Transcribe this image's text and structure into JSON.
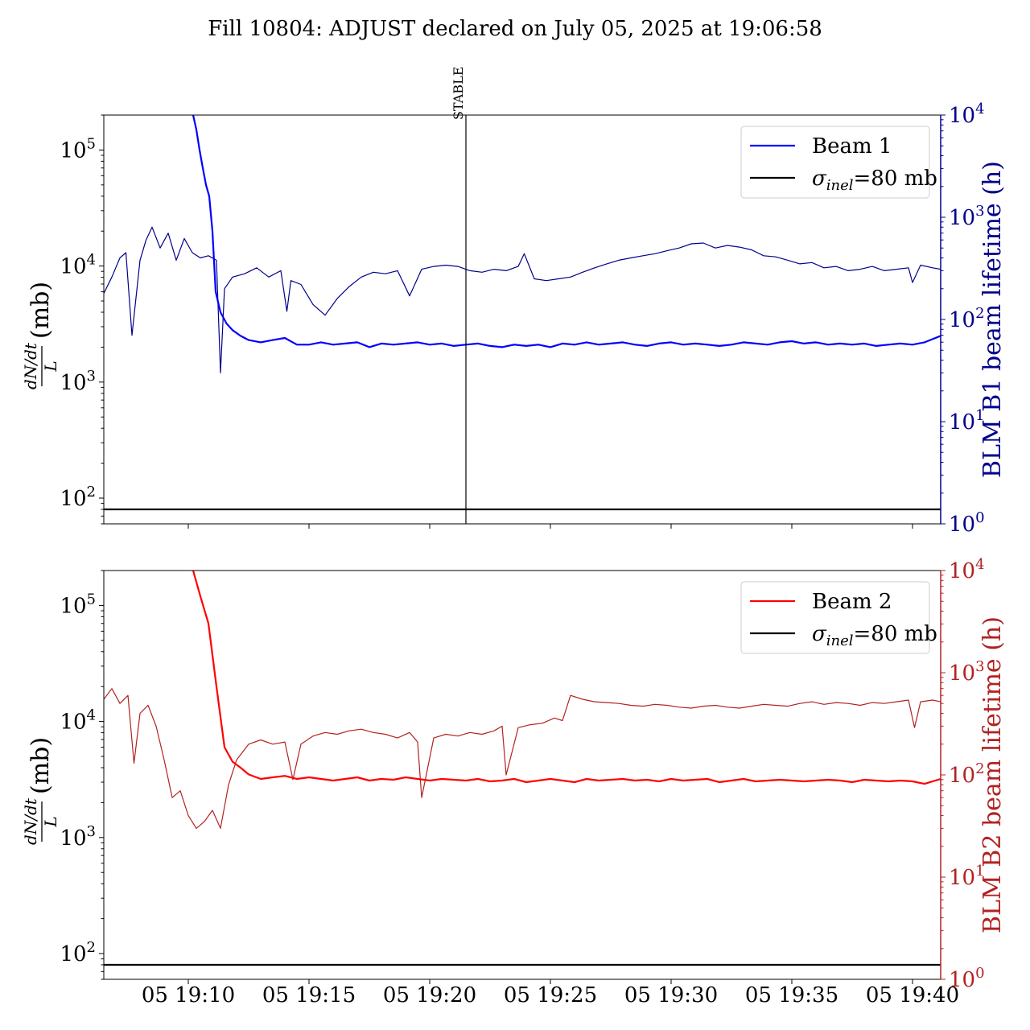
{
  "figure": {
    "title": "Fill 10804: ADJUST declared on July 05, 2025 at 19:06:58"
  },
  "chart_data": [
    {
      "type": "line",
      "panel": "top",
      "x_axis": {
        "kind": "time",
        "range": [
          "2025-07-05 19:06:30",
          "2025-07-05 19:41:10"
        ],
        "tick_labels": [
          "05 19:10",
          "05 19:15",
          "05 19:20",
          "05 19:25",
          "05 19:30",
          "05 19:35",
          "05 19:40"
        ],
        "tick_labels_visible": false
      },
      "left_axis": {
        "label": "dN/dt / L (mb)",
        "label_parts": {
          "numerator": "dN/dt",
          "denominator": "L",
          "unit": "(mb)"
        },
        "scale": "log",
        "range": [
          60,
          200000
        ],
        "tick_labels": [
          "10^2",
          "10^3",
          "10^4",
          "10^5"
        ],
        "tick_values": [
          100,
          1000,
          10000,
          100000
        ]
      },
      "right_axis": {
        "label": "BLM B1 beam lifetime (h)",
        "color": "#00008b",
        "scale": "log",
        "range": [
          1,
          10000
        ],
        "tick_labels": [
          "10^0",
          "10^1",
          "10^2",
          "10^3",
          "10^4"
        ],
        "tick_values": [
          1,
          10,
          100,
          1000,
          10000
        ]
      },
      "vline": {
        "time": "2025-07-05 19:21:30",
        "label": "STABLE"
      },
      "legend": {
        "position": "upper right",
        "entries": [
          {
            "label": "Beam 1",
            "color": "#0000ff"
          },
          {
            "label": "σinel=80 mb",
            "label_parts": {
              "symbol": "σ",
              "sub": "inel",
              "rest": "=80 mb"
            },
            "color": "#000000"
          }
        ]
      },
      "series": [
        {
          "name": "Beam 1",
          "axis": "left",
          "color": "#0000ff",
          "x": [
            "19:10:12",
            "19:10:20",
            "19:10:28",
            "19:10:36",
            "19:10:44",
            "19:10:52",
            "19:11:00",
            "19:11:08",
            "19:11:20",
            "19:11:35",
            "19:11:50",
            "19:12:10",
            "19:12:30",
            "19:13:00",
            "19:13:30",
            "19:14:00",
            "19:14:30",
            "19:15:00",
            "19:15:30",
            "19:16:00",
            "19:16:30",
            "19:17:00",
            "19:17:30",
            "19:18:00",
            "19:18:30",
            "19:19:00",
            "19:19:30",
            "19:20:00",
            "19:20:30",
            "19:21:00",
            "19:21:30",
            "19:22:00",
            "19:22:30",
            "19:23:00",
            "19:23:30",
            "19:24:00",
            "19:24:30",
            "19:25:00",
            "19:25:30",
            "19:26:00",
            "19:26:30",
            "19:27:00",
            "19:27:30",
            "19:28:00",
            "19:28:30",
            "19:29:00",
            "19:29:30",
            "19:30:00",
            "19:30:30",
            "19:31:00",
            "19:31:30",
            "19:32:00",
            "19:32:30",
            "19:33:00",
            "19:33:30",
            "19:34:00",
            "19:34:30",
            "19:35:00",
            "19:35:30",
            "19:36:00",
            "19:36:30",
            "19:37:00",
            "19:37:30",
            "19:38:00",
            "19:38:30",
            "19:39:00",
            "19:39:30",
            "19:40:00",
            "19:40:30",
            "19:41:10"
          ],
          "values": [
            200000,
            150000,
            100000,
            70000,
            50000,
            40000,
            20000,
            6000,
            4000,
            3200,
            2800,
            2500,
            2300,
            2200,
            2300,
            2400,
            2100,
            2100,
            2200,
            2100,
            2150,
            2200,
            2000,
            2150,
            2100,
            2150,
            2200,
            2100,
            2150,
            2050,
            2100,
            2150,
            2050,
            2000,
            2100,
            2050,
            2100,
            2000,
            2150,
            2100,
            2200,
            2100,
            2150,
            2200,
            2100,
            2050,
            2150,
            2200,
            2100,
            2150,
            2100,
            2050,
            2100,
            2200,
            2150,
            2100,
            2200,
            2250,
            2150,
            2200,
            2100,
            2150,
            2100,
            2150,
            2050,
            2100,
            2150,
            2100,
            2200,
            2500
          ]
        },
        {
          "name": "σinel=80 mb",
          "axis": "left",
          "color": "#000000",
          "x": [
            "19:06:30",
            "19:41:10"
          ],
          "values": [
            80,
            80
          ]
        },
        {
          "name": "BLM B1 beam lifetime",
          "axis": "right",
          "color": "#00008b",
          "x": [
            "19:06:30",
            "19:06:50",
            "19:07:10",
            "19:07:25",
            "19:07:40",
            "19:08:00",
            "19:08:15",
            "19:08:30",
            "19:08:50",
            "19:09:10",
            "19:09:30",
            "19:09:50",
            "19:10:10",
            "19:10:30",
            "19:10:50",
            "19:11:10",
            "19:11:20",
            "19:11:30",
            "19:11:50",
            "19:12:20",
            "19:12:50",
            "19:13:20",
            "19:13:50",
            "19:14:05",
            "19:14:15",
            "19:14:40",
            "19:15:10",
            "19:15:40",
            "19:16:10",
            "19:16:40",
            "19:17:10",
            "19:17:40",
            "19:18:10",
            "19:18:40",
            "19:19:10",
            "19:19:40",
            "19:20:10",
            "19:20:40",
            "19:21:10",
            "19:21:40",
            "19:22:10",
            "19:22:40",
            "19:23:10",
            "19:23:40",
            "19:23:55",
            "19:24:20",
            "19:24:50",
            "19:25:20",
            "19:25:50",
            "19:26:20",
            "19:26:50",
            "19:27:20",
            "19:27:50",
            "19:28:20",
            "19:28:50",
            "19:29:20",
            "19:29:50",
            "19:30:20",
            "19:30:50",
            "19:31:20",
            "19:31:50",
            "19:32:20",
            "19:32:50",
            "19:33:20",
            "19:33:50",
            "19:34:20",
            "19:34:50",
            "19:35:20",
            "19:35:50",
            "19:36:20",
            "19:36:50",
            "19:37:20",
            "19:37:50",
            "19:38:20",
            "19:38:50",
            "19:39:20",
            "19:39:50",
            "19:40:00",
            "19:40:20",
            "19:40:50",
            "19:41:10"
          ],
          "values": [
            180,
            260,
            400,
            450,
            70,
            380,
            600,
            800,
            500,
            700,
            380,
            620,
            450,
            400,
            420,
            380,
            30,
            200,
            260,
            280,
            320,
            260,
            300,
            120,
            240,
            220,
            140,
            110,
            160,
            210,
            260,
            290,
            280,
            300,
            170,
            310,
            330,
            340,
            330,
            300,
            290,
            310,
            300,
            330,
            440,
            250,
            240,
            250,
            260,
            290,
            320,
            350,
            380,
            400,
            420,
            440,
            470,
            500,
            550,
            560,
            500,
            530,
            510,
            480,
            420,
            410,
            380,
            350,
            360,
            320,
            330,
            300,
            310,
            330,
            300,
            310,
            320,
            230,
            340,
            320,
            310
          ]
        }
      ]
    },
    {
      "type": "line",
      "panel": "bottom",
      "x_axis": {
        "kind": "time",
        "range": [
          "2025-07-05 19:06:30",
          "2025-07-05 19:41:10"
        ],
        "tick_labels": [
          "05 19:10",
          "05 19:15",
          "05 19:20",
          "05 19:25",
          "05 19:30",
          "05 19:35",
          "05 19:40"
        ],
        "tick_labels_visible": true
      },
      "left_axis": {
        "label": "dN/dt / L (mb)",
        "label_parts": {
          "numerator": "dN/dt",
          "denominator": "L",
          "unit": "(mb)"
        },
        "scale": "log",
        "range": [
          60,
          200000
        ],
        "tick_labels": [
          "10^2",
          "10^3",
          "10^4",
          "10^5"
        ],
        "tick_values": [
          100,
          1000,
          10000,
          100000
        ]
      },
      "right_axis": {
        "label": "BLM B2 beam lifetime (h)",
        "color": "#b22222",
        "scale": "log",
        "range": [
          1,
          10000
        ],
        "tick_labels": [
          "10^0",
          "10^1",
          "10^2",
          "10^3",
          "10^4"
        ],
        "tick_values": [
          1,
          10,
          100,
          1000,
          10000
        ]
      },
      "legend": {
        "position": "upper right",
        "entries": [
          {
            "label": "Beam 2",
            "color": "#ff0000"
          },
          {
            "label": "σinel=80 mb",
            "label_parts": {
              "symbol": "σ",
              "sub": "inel",
              "rest": "=80 mb"
            },
            "color": "#000000"
          }
        ]
      },
      "series": [
        {
          "name": "Beam 2",
          "axis": "left",
          "color": "#ff0000",
          "x": [
            "19:10:12",
            "19:10:30",
            "19:10:50",
            "19:11:10",
            "19:11:30",
            "19:11:50",
            "19:12:10",
            "19:12:30",
            "19:13:00",
            "19:13:30",
            "19:14:00",
            "19:14:30",
            "19:15:00",
            "19:15:30",
            "19:16:00",
            "19:16:30",
            "19:17:00",
            "19:17:30",
            "19:18:00",
            "19:18:30",
            "19:19:00",
            "19:19:30",
            "19:20:00",
            "19:20:30",
            "19:21:00",
            "19:21:30",
            "19:22:00",
            "19:22:30",
            "19:23:00",
            "19:23:30",
            "19:24:00",
            "19:24:30",
            "19:25:00",
            "19:25:30",
            "19:26:00",
            "19:26:30",
            "19:27:00",
            "19:27:30",
            "19:28:00",
            "19:28:30",
            "19:29:00",
            "19:29:30",
            "19:30:00",
            "19:30:30",
            "19:31:00",
            "19:31:30",
            "19:32:00",
            "19:32:30",
            "19:33:00",
            "19:33:30",
            "19:34:00",
            "19:34:30",
            "19:35:00",
            "19:35:30",
            "19:36:00",
            "19:36:30",
            "19:37:00",
            "19:37:30",
            "19:38:00",
            "19:38:30",
            "19:39:00",
            "19:39:30",
            "19:40:00",
            "19:40:30",
            "19:41:10"
          ],
          "values": [
            200000,
            120000,
            70000,
            20000,
            6000,
            4500,
            4000,
            3500,
            3200,
            3300,
            3400,
            3200,
            3300,
            3200,
            3100,
            3200,
            3300,
            3100,
            3200,
            3150,
            3300,
            3200,
            3100,
            3200,
            3150,
            3100,
            3200,
            3050,
            3100,
            3200,
            3000,
            3100,
            3200,
            3100,
            3000,
            3200,
            3100,
            3150,
            3200,
            3100,
            3150,
            3050,
            3200,
            3100,
            3150,
            3200,
            3000,
            3100,
            3200,
            3050,
            3100,
            3150,
            3100,
            3050,
            3100,
            3150,
            3100,
            3000,
            3150,
            3100,
            3050,
            3100,
            3050,
            2900,
            3200
          ]
        },
        {
          "name": "σinel=80 mb",
          "axis": "left",
          "color": "#000000",
          "x": [
            "19:06:30",
            "19:41:10"
          ],
          "values": [
            80,
            80
          ]
        },
        {
          "name": "BLM B2 beam lifetime",
          "axis": "right",
          "color": "#b22222",
          "x": [
            "19:06:30",
            "19:06:50",
            "19:07:10",
            "19:07:30",
            "19:07:45",
            "19:08:00",
            "19:08:20",
            "19:08:40",
            "19:09:00",
            "19:09:20",
            "19:09:40",
            "19:10:00",
            "19:10:20",
            "19:10:40",
            "19:11:00",
            "19:11:20",
            "19:11:40",
            "19:12:00",
            "19:12:30",
            "19:13:00",
            "19:13:30",
            "19:14:00",
            "19:14:20",
            "19:14:40",
            "19:15:10",
            "19:15:40",
            "19:16:10",
            "19:16:40",
            "19:17:10",
            "19:17:40",
            "19:18:10",
            "19:18:40",
            "19:19:10",
            "19:19:30",
            "19:19:40",
            "19:20:10",
            "19:20:40",
            "19:21:10",
            "19:21:40",
            "19:22:10",
            "19:22:40",
            "19:23:00",
            "19:23:10",
            "19:23:40",
            "19:24:10",
            "19:24:40",
            "19:25:10",
            "19:25:30",
            "19:25:50",
            "19:26:20",
            "19:26:50",
            "19:27:20",
            "19:27:50",
            "19:28:20",
            "19:28:50",
            "19:29:20",
            "19:29:50",
            "19:30:20",
            "19:30:50",
            "19:31:20",
            "19:31:50",
            "19:32:20",
            "19:32:50",
            "19:33:20",
            "19:33:50",
            "19:34:20",
            "19:34:50",
            "19:35:20",
            "19:35:50",
            "19:36:20",
            "19:36:50",
            "19:37:20",
            "19:37:50",
            "19:38:20",
            "19:38:50",
            "19:39:20",
            "19:39:50",
            "19:40:05",
            "19:40:20",
            "19:40:50",
            "19:41:10"
          ],
          "values": [
            550,
            700,
            500,
            600,
            130,
            400,
            480,
            300,
            140,
            60,
            70,
            40,
            30,
            35,
            45,
            30,
            80,
            140,
            200,
            220,
            200,
            210,
            90,
            200,
            240,
            260,
            250,
            270,
            280,
            260,
            250,
            230,
            260,
            210,
            60,
            230,
            250,
            240,
            260,
            250,
            270,
            300,
            100,
            290,
            310,
            320,
            360,
            340,
            600,
            550,
            520,
            510,
            500,
            480,
            470,
            490,
            480,
            460,
            450,
            470,
            480,
            460,
            450,
            470,
            490,
            480,
            470,
            500,
            520,
            490,
            510,
            500,
            480,
            510,
            500,
            520,
            540,
            290,
            520,
            540,
            520
          ]
        }
      ]
    }
  ]
}
